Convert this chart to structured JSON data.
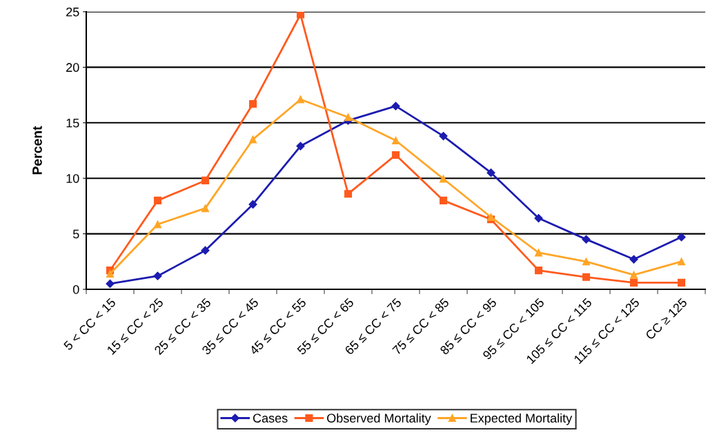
{
  "chart_data": {
    "type": "line",
    "ylabel": "Percent",
    "categories": [
      "5 < CC < 15",
      "15 ≤ CC < 25",
      "25 ≤ CC < 35",
      "35 ≤ CC < 45",
      "45 ≤ CC < 55",
      "55 ≤ CC < 65",
      "65 ≤ CC < 75",
      "75 ≤ CC < 85",
      "85 ≤ CC < 95",
      "95 ≤ CC < 105",
      "105 ≤ CC < 115",
      "115 ≤ CC < 125",
      "CC ≥ 125"
    ],
    "series": [
      {
        "name": "Cases",
        "color": "#1c1cb0",
        "marker": "diamond",
        "values": [
          0.5,
          1.2,
          3.5,
          7.65,
          12.9,
          15.2,
          16.5,
          13.8,
          10.5,
          6.4,
          4.5,
          2.7,
          4.7
        ]
      },
      {
        "name": "Observed Mortality",
        "color": "#ff5a1e",
        "marker": "square",
        "values": [
          1.7,
          8.0,
          9.8,
          16.7,
          24.75,
          8.6,
          12.1,
          8.0,
          6.3,
          1.7,
          1.1,
          0.6,
          0.6
        ]
      },
      {
        "name": "Expected Mortality",
        "color": "#ffa526",
        "marker": "triangle",
        "values": [
          1.4,
          5.85,
          7.3,
          13.5,
          17.1,
          15.5,
          13.4,
          9.95,
          6.5,
          3.3,
          2.5,
          1.3,
          2.5
        ]
      }
    ],
    "ylim": [
      0,
      25
    ],
    "yticks": [
      0,
      5,
      10,
      15,
      20,
      25
    ],
    "grid": "y",
    "legend": "bottom",
    "line_style": "solid"
  }
}
